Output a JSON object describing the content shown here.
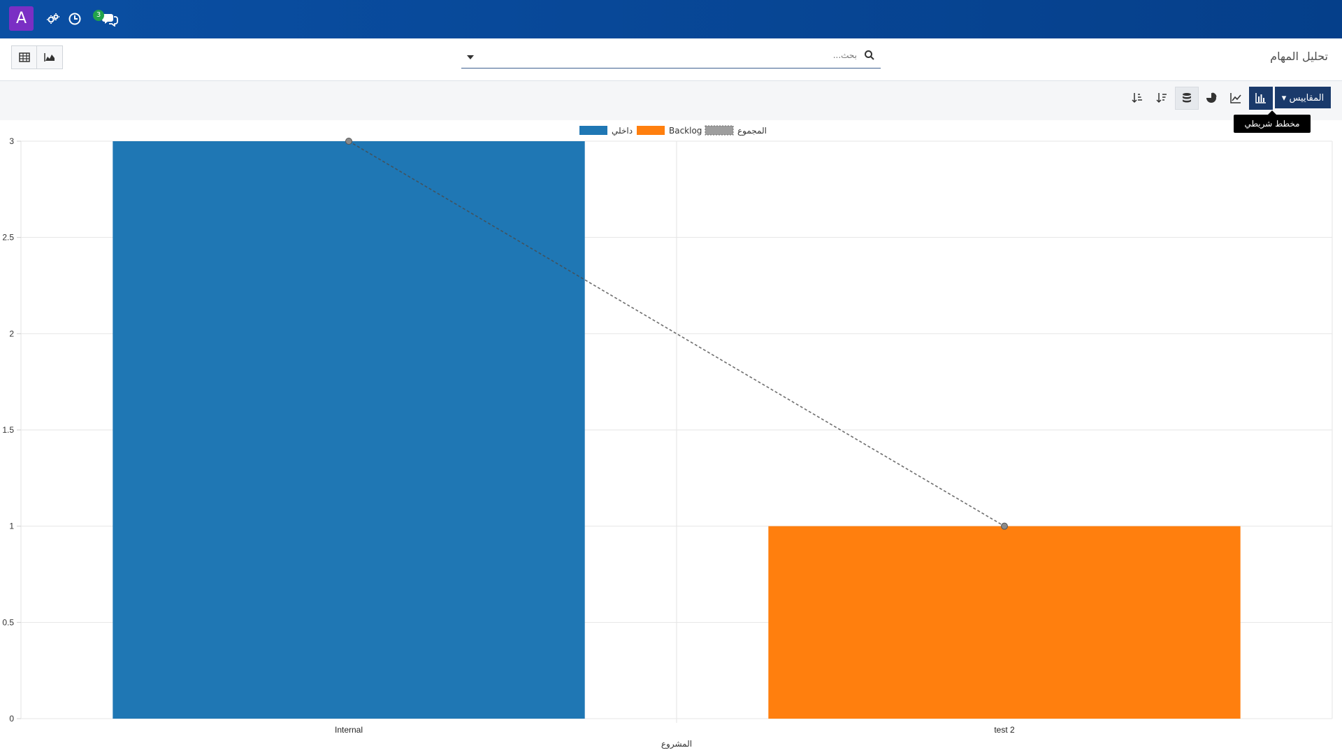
{
  "app": {
    "avatar_letter": "A",
    "notification_count": "3"
  },
  "control_panel": {
    "page_title": "تحليل المهام",
    "search_placeholder": "بحث..."
  },
  "toolbar": {
    "measures_label": "المقاييس",
    "tooltip": "مخطط شريطي"
  },
  "chart_data": {
    "type": "bar",
    "categories": [
      "Internal",
      "test 2"
    ],
    "series": [
      {
        "name": "داخلي",
        "values": [
          3,
          0
        ],
        "color": "#1f77b4"
      },
      {
        "name": "Backlog",
        "values": [
          0,
          1
        ],
        "color": "#ff7f0e"
      }
    ],
    "cumulative": {
      "name": "المجموع",
      "values": [
        3,
        1
      ],
      "color": "#6e6e6e"
    },
    "xlabel": "المشروع",
    "ylabel": "",
    "ylim": [
      0,
      3
    ],
    "yticks": [
      "0",
      "0.5",
      "1",
      "1.5",
      "2",
      "2.5",
      "3"
    ],
    "grid": true,
    "legend": "top-center"
  }
}
